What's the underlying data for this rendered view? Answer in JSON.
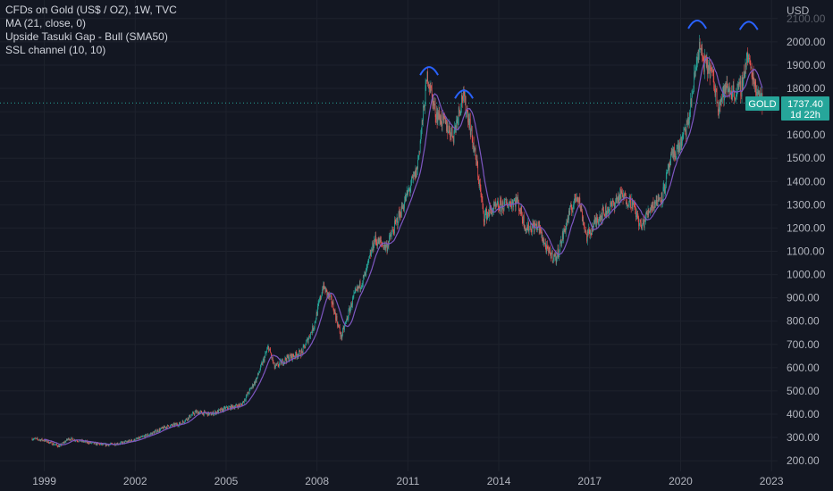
{
  "header": {
    "symbol_line": "CFDs on Gold (US$ / OZ), 1W, TVC",
    "indicators": [
      "MA (21, close, 0)",
      "Upside Tasuki Gap - Bull (SMA50)",
      "SSL channel (10, 10)"
    ]
  },
  "axis": {
    "currency": "USD",
    "y_labels": [
      "2100.00",
      "2000.00",
      "1900.00",
      "1800.00",
      "1700.00",
      "1600.00",
      "1500.00",
      "1400.00",
      "1300.00",
      "1200.00",
      "1100.00",
      "1000.00",
      "900.00",
      "800.00",
      "700.00",
      "600.00",
      "500.00",
      "400.00",
      "300.00",
      "200.00"
    ],
    "x_labels": [
      "1999",
      "2002",
      "2005",
      "2008",
      "2011",
      "2014",
      "2017",
      "2020",
      "2023"
    ]
  },
  "price_badge": {
    "symbol": "GOLD",
    "price": "1737.40",
    "countdown": "1d 22h",
    "color": "#26a69a"
  },
  "colors": {
    "background": "#131722",
    "up": "#26a69a",
    "down": "#ef5350",
    "ma": "#7e57c2",
    "arc": "#2962ff"
  },
  "chart_data": {
    "type": "candlestick",
    "title": "CFDs on Gold (US$ / OZ), 1W, TVC",
    "ylabel": "USD",
    "ylim": [
      180,
      2110
    ],
    "xlim": [
      1998.6,
      2023.9
    ],
    "last_price": 1737.4,
    "series": [
      {
        "name": "CFDs on Gold (US$ / OZ)",
        "x": [
          1998.6,
          1999.0,
          1999.5,
          1999.8,
          2000.2,
          2000.6,
          2001.0,
          2001.5,
          2002.0,
          2002.5,
          2003.0,
          2003.5,
          2004.0,
          2004.5,
          2005.0,
          2005.5,
          2006.0,
          2006.4,
          2006.6,
          2007.0,
          2007.5,
          2007.9,
          2008.2,
          2008.5,
          2008.8,
          2009.2,
          2009.6,
          2009.9,
          2010.3,
          2010.7,
          2011.0,
          2011.3,
          2011.65,
          2011.9,
          2012.2,
          2012.5,
          2012.8,
          2013.0,
          2013.3,
          2013.5,
          2013.8,
          2014.2,
          2014.6,
          2014.9,
          2015.3,
          2015.6,
          2015.9,
          2016.3,
          2016.6,
          2016.9,
          2017.3,
          2017.7,
          2018.0,
          2018.4,
          2018.7,
          2019.0,
          2019.4,
          2019.7,
          2020.0,
          2020.25,
          2020.6,
          2020.8,
          2021.0,
          2021.25,
          2021.5,
          2021.8,
          2022.0,
          2022.2,
          2022.5,
          2022.7
        ],
        "y": [
          295,
          288,
          262,
          295,
          285,
          275,
          268,
          275,
          290,
          315,
          345,
          360,
          410,
          400,
          425,
          440,
          550,
          690,
          600,
          640,
          665,
          780,
          950,
          880,
          730,
          900,
          1000,
          1150,
          1120,
          1250,
          1350,
          1450,
          1860,
          1700,
          1650,
          1600,
          1770,
          1680,
          1450,
          1250,
          1280,
          1300,
          1320,
          1200,
          1210,
          1100,
          1070,
          1250,
          1350,
          1160,
          1250,
          1290,
          1340,
          1310,
          1200,
          1290,
          1340,
          1500,
          1560,
          1650,
          1980,
          1900,
          1880,
          1730,
          1800,
          1780,
          1800,
          1940,
          1800,
          1737.4
        ]
      },
      {
        "name": "MA (21, close, 0)",
        "kind": "moving_average",
        "period": 21
      }
    ],
    "annotations": [
      {
        "type": "arc",
        "x": 2011.7,
        "y": 1880
      },
      {
        "type": "arc",
        "x": 2012.85,
        "y": 1780
      },
      {
        "type": "arc",
        "x": 2020.55,
        "y": 2080
      },
      {
        "type": "arc",
        "x": 2022.25,
        "y": 2075
      }
    ],
    "grid": true
  }
}
